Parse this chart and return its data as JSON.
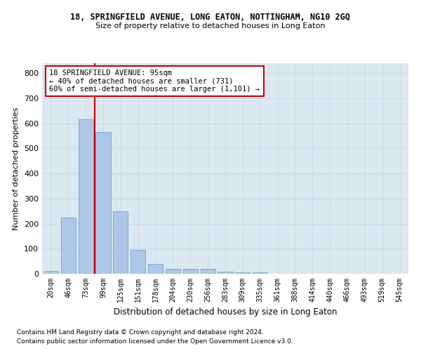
{
  "title1": "18, SPRINGFIELD AVENUE, LONG EATON, NOTTINGHAM, NG10 2GQ",
  "title2": "Size of property relative to detached houses in Long Eaton",
  "xlabel": "Distribution of detached houses by size in Long Eaton",
  "ylabel": "Number of detached properties",
  "annotation_line1": "18 SPRINGFIELD AVENUE: 95sqm",
  "annotation_line2": "← 40% of detached houses are smaller (731)",
  "annotation_line3": "60% of semi-detached houses are larger (1,101) →",
  "bar_color": "#aec6e8",
  "bar_edge_color": "#5b9bd5",
  "vline_color": "#cc0000",
  "annotation_box_edgecolor": "#cc0000",
  "grid_color": "#ccd9e8",
  "bg_color": "#dce8f0",
  "categories": [
    "20sqm",
    "46sqm",
    "73sqm",
    "99sqm",
    "125sqm",
    "151sqm",
    "178sqm",
    "204sqm",
    "230sqm",
    "256sqm",
    "283sqm",
    "309sqm",
    "335sqm",
    "361sqm",
    "388sqm",
    "414sqm",
    "440sqm",
    "466sqm",
    "493sqm",
    "519sqm",
    "545sqm"
  ],
  "values": [
    10,
    225,
    615,
    565,
    250,
    95,
    40,
    20,
    20,
    20,
    8,
    5,
    5,
    0,
    0,
    0,
    0,
    0,
    0,
    0,
    0
  ],
  "ylim": [
    0,
    840
  ],
  "yticks": [
    0,
    100,
    200,
    300,
    400,
    500,
    600,
    700,
    800
  ],
  "vline_x": 2.5,
  "footnote1": "Contains HM Land Registry data © Crown copyright and database right 2024.",
  "footnote2": "Contains public sector information licensed under the Open Government Licence v3.0."
}
